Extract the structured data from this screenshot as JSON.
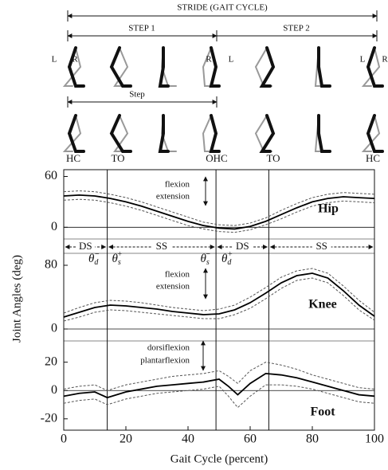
{
  "diagram": {
    "stride": "STRIDE (GAIT CYCLE)",
    "step1": "STEP 1",
    "step2": "STEP 2",
    "step": "Step",
    "leg_labels": [
      "L",
      "R",
      "R",
      "L",
      "L",
      "R"
    ],
    "events": [
      "HC",
      "TO",
      "OHC",
      "TO",
      "HC"
    ],
    "event_lines": [
      14,
      49,
      66
    ],
    "phases": [
      "DS",
      "SS",
      "DS",
      "SS"
    ],
    "thetas": [
      {
        "base": "θ",
        "sub": "d",
        "sup": "−"
      },
      {
        "base": "θ",
        "sub": "s",
        "sup": "+"
      },
      {
        "base": "θ",
        "sub": "s",
        "sup": "−"
      },
      {
        "base": "θ",
        "sub": "d",
        "sup": "+"
      }
    ]
  },
  "axes": {
    "ylabel": "Joint Angles (deg)",
    "xlabel": "Gait Cycle (percent)",
    "xlim": [
      0,
      100
    ],
    "xticks": [
      0,
      20,
      40,
      60,
      80,
      100
    ]
  },
  "chart_data": [
    {
      "type": "line",
      "panel_label": "Hip",
      "annotations": [
        "flexion",
        "extension"
      ],
      "x": [
        0,
        5,
        10,
        15,
        20,
        25,
        30,
        35,
        40,
        45,
        50,
        55,
        60,
        65,
        70,
        75,
        80,
        85,
        90,
        95,
        100
      ],
      "series": [
        {
          "color": "#000000",
          "style": "solid",
          "values": [
            37,
            38,
            37,
            34,
            30,
            25,
            19,
            13,
            7,
            2,
            -1,
            -2,
            1,
            7,
            15,
            23,
            30,
            34,
            36,
            35,
            34
          ]
        },
        {
          "color": "#555555",
          "style": "dashed",
          "values": [
            42,
            43,
            42,
            39,
            35,
            30,
            24,
            18,
            12,
            6,
            3,
            2,
            5,
            11,
            20,
            28,
            35,
            39,
            41,
            40,
            39
          ]
        },
        {
          "color": "#555555",
          "style": "dashed",
          "values": [
            32,
            33,
            32,
            29,
            25,
            20,
            14,
            8,
            2,
            -2,
            -5,
            -6,
            -3,
            3,
            10,
            18,
            25,
            29,
            31,
            30,
            29
          ]
        }
      ],
      "ylim": [
        -11,
        68
      ],
      "yticks": [
        0,
        60
      ]
    },
    {
      "type": "line",
      "panel_label": "Knee",
      "annotations": [
        "flexion",
        "extension"
      ],
      "x": [
        0,
        5,
        10,
        15,
        20,
        25,
        30,
        35,
        40,
        45,
        50,
        55,
        60,
        65,
        70,
        75,
        80,
        85,
        90,
        95,
        100
      ],
      "series": [
        {
          "color": "#000000",
          "style": "solid",
          "values": [
            15,
            21,
            27,
            30,
            29,
            27,
            25,
            22,
            20,
            18,
            19,
            24,
            33,
            45,
            58,
            67,
            70,
            64,
            48,
            30,
            16
          ]
        },
        {
          "color": "#555555",
          "style": "dashed",
          "values": [
            20,
            27,
            33,
            36,
            35,
            33,
            30,
            27,
            25,
            23,
            25,
            30,
            40,
            52,
            65,
            73,
            76,
            70,
            54,
            36,
            21
          ]
        },
        {
          "color": "#555555",
          "style": "dashed",
          "values": [
            10,
            15,
            21,
            24,
            23,
            21,
            19,
            17,
            15,
            13,
            13,
            18,
            26,
            38,
            51,
            61,
            64,
            58,
            42,
            24,
            11
          ]
        }
      ],
      "ylim": [
        -15,
        95
      ],
      "yticks": [
        0,
        80
      ]
    },
    {
      "type": "line",
      "panel_label": "Foot",
      "annotations": [
        "dorsiflexion",
        "plantarflexion"
      ],
      "x": [
        0,
        5,
        10,
        14,
        20,
        25,
        30,
        35,
        40,
        45,
        50,
        53,
        56,
        60,
        65,
        70,
        75,
        80,
        85,
        90,
        95,
        100
      ],
      "series": [
        {
          "color": "#000000",
          "style": "solid",
          "values": [
            -4,
            -2,
            -1,
            -5,
            -1,
            1,
            3,
            4,
            5,
            6,
            8,
            3,
            -3,
            5,
            12,
            11,
            9,
            6,
            3,
            0,
            -3,
            -4
          ]
        },
        {
          "color": "#555555",
          "style": "dashed",
          "values": [
            1,
            3,
            4,
            0,
            4,
            6,
            8,
            10,
            11,
            12,
            14,
            10,
            5,
            14,
            20,
            18,
            15,
            11,
            8,
            5,
            2,
            1
          ]
        },
        {
          "color": "#555555",
          "style": "dashed",
          "values": [
            -9,
            -7,
            -6,
            -10,
            -6,
            -4,
            -2,
            -1,
            0,
            1,
            3,
            -4,
            -12,
            -4,
            4,
            4,
            3,
            1,
            -2,
            -5,
            -8,
            -9
          ]
        }
      ],
      "ylim": [
        -28,
        35
      ],
      "yticks": [
        -20,
        0,
        20
      ]
    }
  ]
}
